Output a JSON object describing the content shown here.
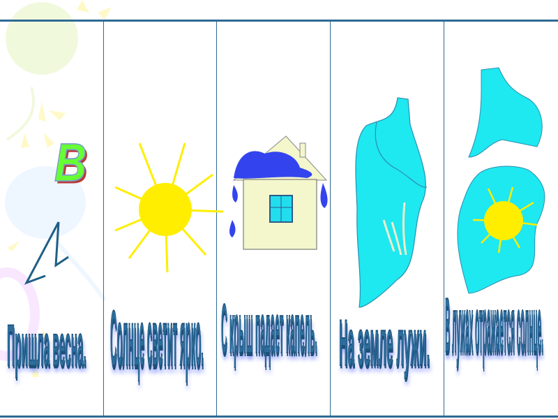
{
  "letter": "В",
  "captions": [
    "Пришла  весна.",
    "Солнце светит ярко.",
    "С крыш падает капель.",
    "На земле лужи.",
    "В лужах отражается солнце."
  ],
  "colors": {
    "grid": "#2f6a94",
    "caption": "#2c6d9c",
    "letter": "#66ff33",
    "sun": "#ffee00",
    "puddle": "#1ee8f0",
    "roof_snow": "#3344ee",
    "house": "#f4f6cc"
  },
  "icons": [
    "balloon-icon",
    "arrow-sketch-icon",
    "sun-icon",
    "house-icon",
    "puddle-icon",
    "puddle-reflection-icon"
  ]
}
